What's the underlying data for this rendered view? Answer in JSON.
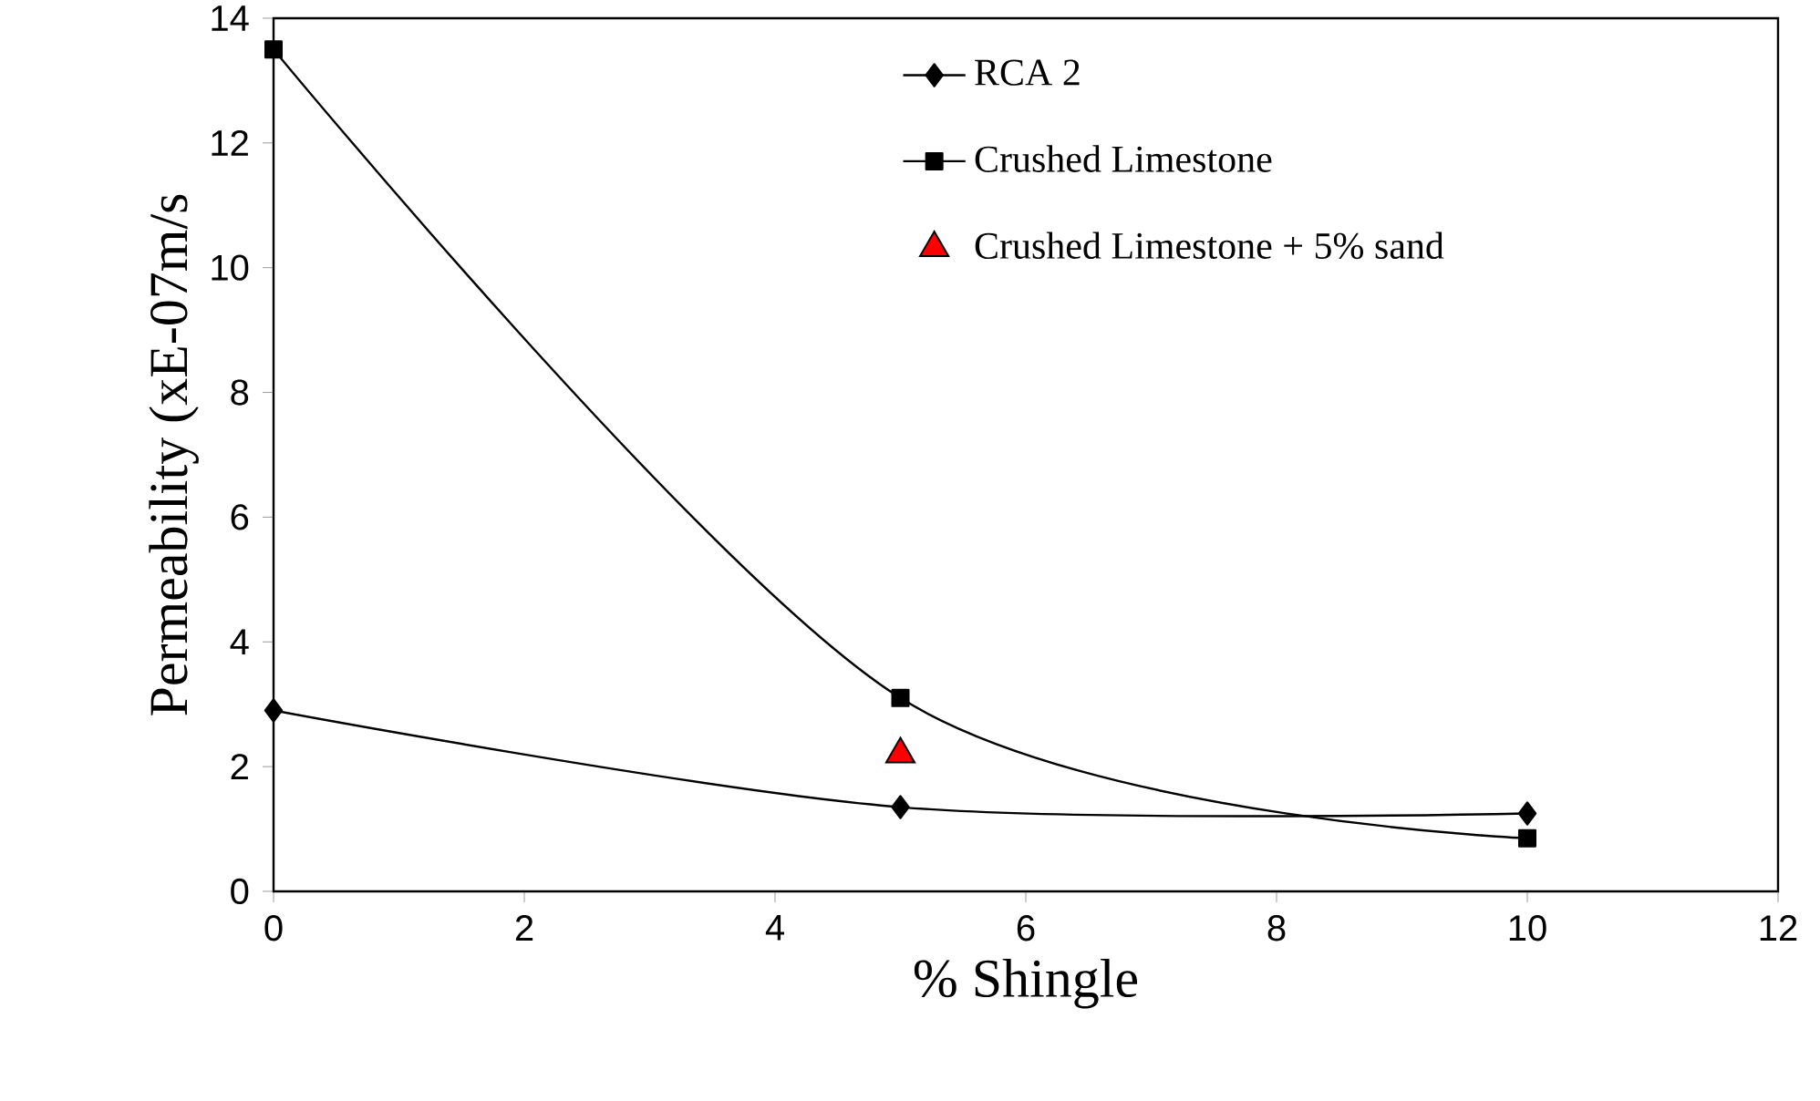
{
  "chart_data": {
    "type": "line",
    "xlabel": "% Shingle",
    "ylabel": "Permeability (xE-07m/s",
    "xlim": [
      0,
      12
    ],
    "xticks": [
      0,
      2,
      4,
      6,
      8,
      10,
      12
    ],
    "ylim": [
      0,
      14
    ],
    "yticks": [
      0,
      2,
      4,
      6,
      8,
      10,
      12,
      14
    ],
    "grid": false,
    "legend": "top right",
    "series": [
      {
        "name": "RCA 2",
        "marker": "diamond",
        "color": "#000000",
        "x": [
          0,
          5,
          10
        ],
        "values": [
          2.9,
          1.35,
          1.25
        ]
      },
      {
        "name": "Crushed Limestone",
        "marker": "square",
        "color": "#000000",
        "x": [
          0,
          5,
          10
        ],
        "values": [
          13.5,
          3.1,
          0.85
        ]
      },
      {
        "name": "Crushed Limestone + 5% sand",
        "type": "scatter",
        "marker": "triangle",
        "color": "#ff0000",
        "x": [
          5
        ],
        "values": [
          2.2
        ]
      }
    ]
  }
}
